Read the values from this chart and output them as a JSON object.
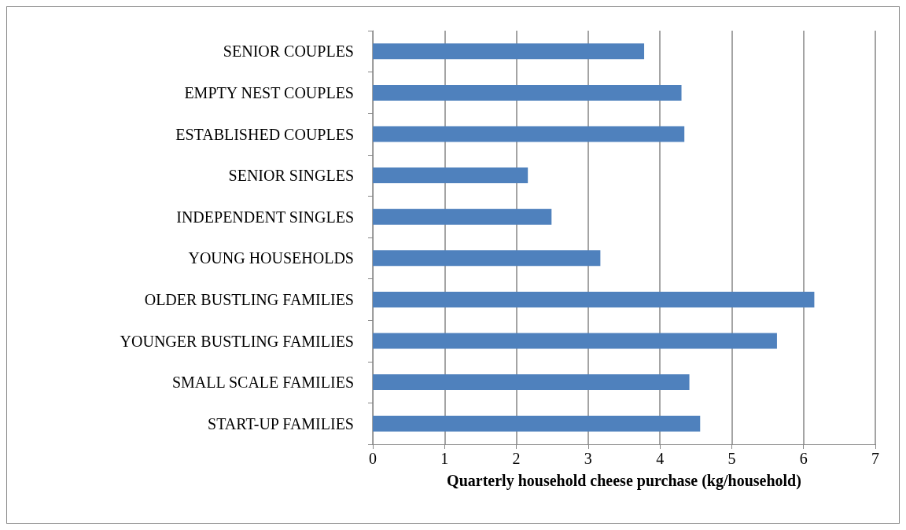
{
  "chart_data": {
    "type": "bar",
    "orientation": "horizontal",
    "xlabel": "Quarterly household cheese purchase (kg/household)",
    "categories": [
      "SENIOR COUPLES",
      "EMPTY NEST COUPLES",
      "ESTABLISHED COUPLES",
      "SENIOR SINGLES",
      "INDEPENDENT SINGLES",
      "YOUNG HOUSEHOLDS",
      "OLDER BUSTLING FAMILIES",
      "YOUNGER BUSTLING FAMILIES",
      "SMALL SCALE FAMILIES",
      "START-UP FAMILIES"
    ],
    "values": [
      3.78,
      4.3,
      4.34,
      2.16,
      2.49,
      3.17,
      6.15,
      5.63,
      4.41,
      4.56
    ],
    "color": "#4f81bd",
    "xlim": [
      0,
      7
    ],
    "xticks": [
      0,
      1,
      2,
      3,
      4,
      5,
      6,
      7
    ],
    "grid": "x"
  }
}
